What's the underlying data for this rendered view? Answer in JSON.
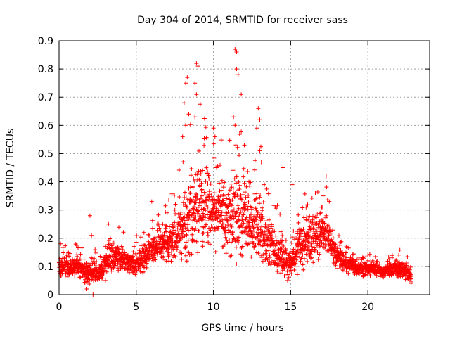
{
  "chart_data": {
    "type": "scatter",
    "title": "Day 304 of 2014, SRMTID for receiver sass",
    "xlabel": "GPS time / hours",
    "ylabel": "SRMTID / TECUs",
    "xlim": [
      0,
      24
    ],
    "ylim": [
      0,
      0.9
    ],
    "xticks": [
      0,
      5,
      10,
      15,
      20
    ],
    "yticks": [
      0,
      0.1,
      0.2,
      0.3,
      0.4,
      0.5,
      0.6,
      0.7,
      0.8,
      0.9
    ],
    "xtick_labels": [
      "0",
      "5",
      "10",
      "15",
      "20"
    ],
    "ytick_labels": [
      "0",
      "0.1",
      "0.2",
      "0.3",
      "0.4",
      "0.5",
      "0.6",
      "0.7",
      "0.8",
      "0.9"
    ],
    "grid": true,
    "marker": "+",
    "color": "#ff0000",
    "series": [
      {
        "name": "SRMTID",
        "envelope": {
          "x": [
            0.0,
            0.5,
            1.0,
            1.5,
            2.0,
            2.5,
            3.0,
            3.5,
            4.0,
            4.5,
            5.0,
            5.5,
            6.0,
            6.5,
            7.0,
            7.5,
            8.0,
            8.5,
            9.0,
            9.5,
            10.0,
            10.5,
            11.0,
            11.5,
            12.0,
            12.5,
            13.0,
            13.5,
            14.0,
            14.5,
            15.0,
            15.5,
            16.0,
            16.5,
            17.0,
            17.5,
            18.0,
            18.5,
            19.0,
            19.5,
            20.0,
            20.5,
            21.0,
            21.5,
            22.0,
            22.5,
            22.8
          ],
          "mean": [
            0.1,
            0.1,
            0.1,
            0.09,
            0.07,
            0.08,
            0.11,
            0.14,
            0.13,
            0.11,
            0.11,
            0.13,
            0.16,
            0.17,
            0.18,
            0.2,
            0.23,
            0.27,
            0.31,
            0.3,
            0.3,
            0.28,
            0.27,
            0.3,
            0.27,
            0.24,
            0.24,
            0.2,
            0.15,
            0.14,
            0.11,
            0.17,
            0.19,
            0.2,
            0.23,
            0.2,
            0.13,
            0.11,
            0.1,
            0.09,
            0.09,
            0.09,
            0.08,
            0.09,
            0.09,
            0.08,
            0.06
          ],
          "spread": [
            0.05,
            0.05,
            0.05,
            0.05,
            0.05,
            0.05,
            0.06,
            0.07,
            0.06,
            0.05,
            0.06,
            0.07,
            0.08,
            0.08,
            0.09,
            0.11,
            0.16,
            0.2,
            0.23,
            0.18,
            0.16,
            0.15,
            0.17,
            0.22,
            0.18,
            0.16,
            0.17,
            0.14,
            0.1,
            0.09,
            0.07,
            0.1,
            0.1,
            0.1,
            0.11,
            0.09,
            0.05,
            0.04,
            0.04,
            0.03,
            0.03,
            0.03,
            0.03,
            0.03,
            0.04,
            0.04,
            0.03
          ],
          "points_total": 2600
        },
        "notable_points": [
          {
            "x": 8.1,
            "y": 0.68
          },
          {
            "x": 8.2,
            "y": 0.75
          },
          {
            "x": 8.3,
            "y": 0.77
          },
          {
            "x": 8.4,
            "y": 0.64
          },
          {
            "x": 8.2,
            "y": 0.6
          },
          {
            "x": 8.0,
            "y": 0.56
          },
          {
            "x": 8.9,
            "y": 0.82
          },
          {
            "x": 9.0,
            "y": 0.81
          },
          {
            "x": 8.8,
            "y": 0.75
          },
          {
            "x": 8.9,
            "y": 0.71
          },
          {
            "x": 8.8,
            "y": 0.63
          },
          {
            "x": 10.0,
            "y": 0.59
          },
          {
            "x": 10.1,
            "y": 0.56
          },
          {
            "x": 10.2,
            "y": 0.45
          },
          {
            "x": 11.4,
            "y": 0.87
          },
          {
            "x": 11.5,
            "y": 0.86
          },
          {
            "x": 11.5,
            "y": 0.8
          },
          {
            "x": 11.6,
            "y": 0.78
          },
          {
            "x": 11.3,
            "y": 0.63
          },
          {
            "x": 11.4,
            "y": 0.6
          },
          {
            "x": 11.8,
            "y": 0.71
          },
          {
            "x": 12.0,
            "y": 0.53
          },
          {
            "x": 12.9,
            "y": 0.66
          },
          {
            "x": 13.0,
            "y": 0.62
          },
          {
            "x": 12.8,
            "y": 0.59
          },
          {
            "x": 13.0,
            "y": 0.51
          },
          {
            "x": 13.1,
            "y": 0.47
          },
          {
            "x": 14.5,
            "y": 0.45
          },
          {
            "x": 15.1,
            "y": 0.39
          },
          {
            "x": 16.6,
            "y": 0.36
          },
          {
            "x": 17.1,
            "y": 0.35
          },
          {
            "x": 17.3,
            "y": 0.42
          },
          {
            "x": 2.0,
            "y": 0.28
          },
          {
            "x": 2.1,
            "y": 0.21
          },
          {
            "x": 3.2,
            "y": 0.25
          },
          {
            "x": 5.5,
            "y": 0.22
          },
          {
            "x": 6.0,
            "y": 0.33
          },
          {
            "x": 7.0,
            "y": 0.29
          },
          {
            "x": 7.5,
            "y": 0.3
          },
          {
            "x": 2.2,
            "y": 0.0
          },
          {
            "x": 1.8,
            "y": 0.02
          },
          {
            "x": 3.0,
            "y": 0.05
          },
          {
            "x": 14.8,
            "y": 0.05
          },
          {
            "x": 22.8,
            "y": 0.04
          },
          {
            "x": 0.1,
            "y": 0.18
          },
          {
            "x": 9.3,
            "y": 0.44
          },
          {
            "x": 9.6,
            "y": 0.43
          },
          {
            "x": 10.5,
            "y": 0.37
          },
          {
            "x": 12.3,
            "y": 0.4
          },
          {
            "x": 13.3,
            "y": 0.39
          },
          {
            "x": 16.0,
            "y": 0.31
          },
          {
            "x": 17.5,
            "y": 0.33
          },
          {
            "x": 20.0,
            "y": 0.14
          },
          {
            "x": 22.0,
            "y": 0.14
          }
        ]
      }
    ]
  }
}
